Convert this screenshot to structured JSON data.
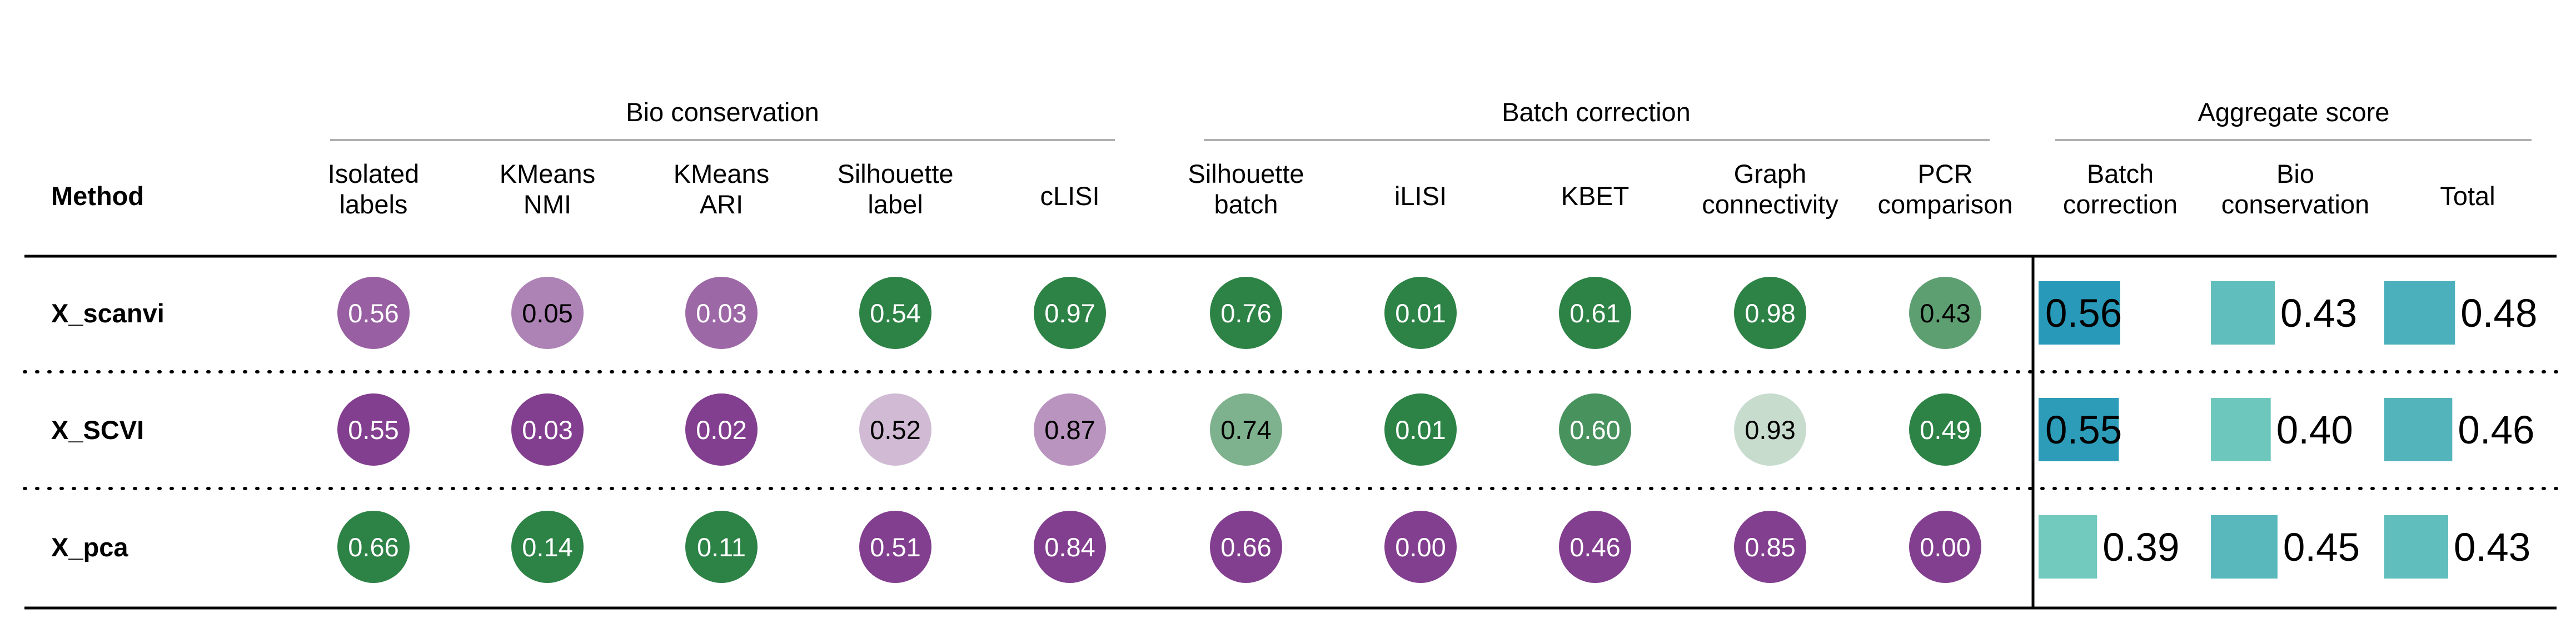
{
  "chart_data": {
    "type": "table",
    "method_header": "Method",
    "groups": [
      {
        "title": "Bio conservation",
        "columns": [
          [
            "Isolated",
            "labels"
          ],
          [
            "KMeans",
            "NMI"
          ],
          [
            "KMeans",
            "ARI"
          ],
          [
            "Silhouette",
            "label"
          ],
          [
            "cLISI"
          ]
        ]
      },
      {
        "title": "Batch correction",
        "columns": [
          [
            "Silhouette",
            "batch"
          ],
          [
            "iLISI"
          ],
          [
            "KBET"
          ],
          [
            "Graph",
            "connectivity"
          ],
          [
            "PCR",
            "comparison"
          ]
        ]
      },
      {
        "title": "Aggregate score",
        "columns": [
          [
            "Batch",
            "correction"
          ],
          [
            "Bio",
            "conservation"
          ],
          [
            "Total"
          ]
        ]
      }
    ],
    "rows": [
      {
        "method": "X_scanvi",
        "values": [
          "0.56",
          "0.05",
          "0.03",
          "0.54",
          "0.97",
          "0.76",
          "0.01",
          "0.61",
          "0.98",
          "0.43"
        ],
        "aggregate": [
          "0.56",
          "0.43",
          "0.48"
        ]
      },
      {
        "method": "X_SCVI",
        "values": [
          "0.55",
          "0.03",
          "0.02",
          "0.52",
          "0.87",
          "0.74",
          "0.01",
          "0.60",
          "0.93",
          "0.49"
        ],
        "aggregate": [
          "0.55",
          "0.40",
          "0.46"
        ]
      },
      {
        "method": "X_pca",
        "values": [
          "0.66",
          "0.14",
          "0.11",
          "0.51",
          "0.84",
          "0.66",
          "0.00",
          "0.46",
          "0.85",
          "0.00"
        ],
        "aggregate": [
          "0.39",
          "0.45",
          "0.43"
        ]
      }
    ],
    "colors": {
      "high": "#1b7837",
      "low": "#762a83",
      "neutral": "#f7f7f7",
      "aggregate_low": "#7fd2be",
      "aggregate_high": "#1f93b8"
    }
  }
}
